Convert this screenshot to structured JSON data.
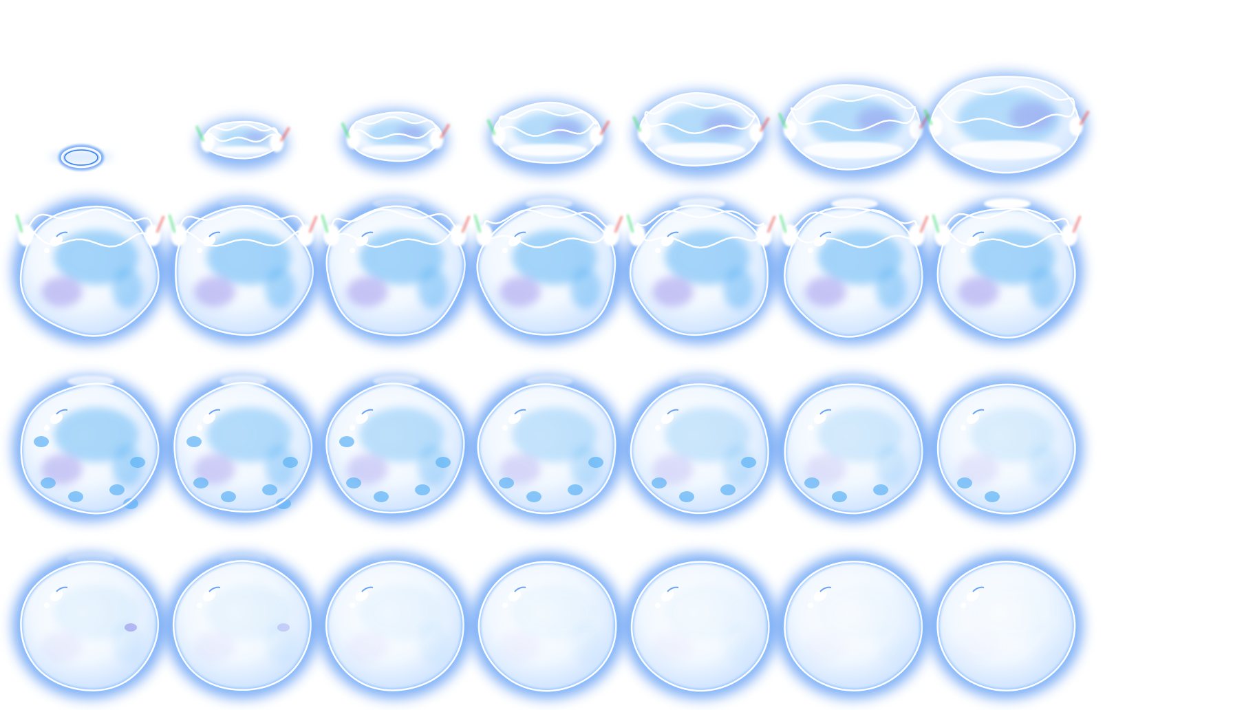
{
  "sprite_sheet": {
    "subject": "bubble-shield",
    "columns": 7,
    "rows": 4,
    "frame_count": 28,
    "colors": {
      "background": "#ffffff",
      "glow": "#2f7df0",
      "glow_soft": "#8ec0ff",
      "shell_fill": "#e8f3ff",
      "inner_blue": "#5cb2f5",
      "inner_violet": "#8a80e8",
      "rim": "#ffffff",
      "spark_green": "#3ee070",
      "spark_red": "#f0504a"
    },
    "phases": [
      {
        "name": "spawn-ring",
        "frames": 1
      },
      {
        "name": "opening",
        "frames": 6
      },
      {
        "name": "forming",
        "frames": 7
      },
      {
        "name": "settling",
        "frames": 7
      },
      {
        "name": "idle-clear",
        "frames": 7
      }
    ]
  }
}
